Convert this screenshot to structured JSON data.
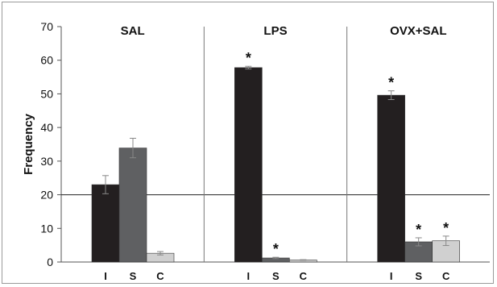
{
  "chart_data": {
    "type": "bar",
    "ylabel": "Frequency",
    "ylim": [
      0,
      70
    ],
    "yticks": [
      0,
      10,
      20,
      30,
      40,
      50,
      60,
      70
    ],
    "reference_line": 20,
    "bar_colors": [
      "#231f20",
      "#5f6062",
      "#d0d0d0"
    ],
    "panels": [
      {
        "title": "SAL",
        "bars": [
          {
            "label": "I",
            "value": 23.0,
            "error": 2.7,
            "significant": false
          },
          {
            "label": "S",
            "value": 33.9,
            "error": 2.9,
            "significant": false
          },
          {
            "label": "C",
            "value": 2.6,
            "error": 0.5,
            "significant": false
          }
        ]
      },
      {
        "title": "LPS",
        "bars": [
          {
            "label": "I",
            "value": 57.8,
            "error": 0.4,
            "significant": true
          },
          {
            "label": "S",
            "value": 1.2,
            "error": 0.2,
            "significant": true
          },
          {
            "label": "C",
            "value": 0.6,
            "error": 0.1,
            "significant": false
          }
        ]
      },
      {
        "title": "OVX+SAL",
        "bars": [
          {
            "label": "I",
            "value": 49.6,
            "error": 1.3,
            "significant": true
          },
          {
            "label": "S",
            "value": 6.0,
            "error": 1.2,
            "significant": true
          },
          {
            "label": "C",
            "value": 6.3,
            "error": 1.4,
            "significant": true
          }
        ]
      }
    ],
    "significance_marker": "*"
  }
}
